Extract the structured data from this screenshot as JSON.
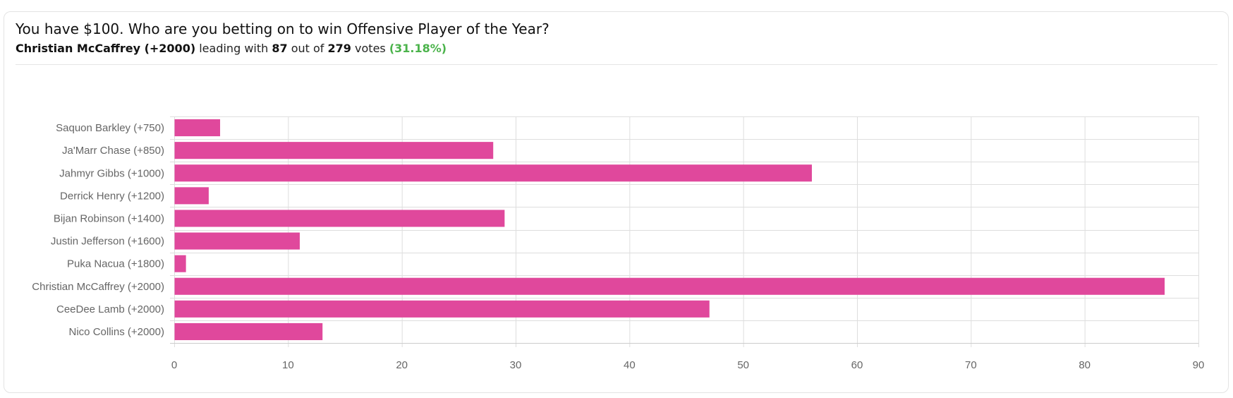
{
  "poll": {
    "question": "You have $100. Who are you betting on to win Offensive Player of the Year?",
    "leader_name": "Christian McCaffrey (+2000)",
    "leading_text": "leading with",
    "leader_votes": "87",
    "out_of_text": "out of",
    "total_votes": "279",
    "votes_text": "votes",
    "leader_pct": "(31.18%)"
  },
  "colors": {
    "bar": "#e0489c",
    "grid": "#dedede",
    "axis": "#cccccc",
    "leader_pct": "#4bb34b"
  },
  "chart_data": {
    "type": "bar",
    "orientation": "horizontal",
    "categories": [
      "Saquon Barkley (+750)",
      "Ja'Marr Chase (+850)",
      "Jahmyr Gibbs (+1000)",
      "Derrick Henry (+1200)",
      "Bijan Robinson (+1400)",
      "Justin Jefferson (+1600)",
      "Puka Nacua (+1800)",
      "Christian McCaffrey (+2000)",
      "CeeDee Lamb (+2000)",
      "Nico Collins (+2000)"
    ],
    "values": [
      4,
      28,
      56,
      3,
      29,
      11,
      1,
      87,
      47,
      13
    ],
    "xlim": [
      0,
      90
    ],
    "xticks": [
      0,
      10,
      20,
      30,
      40,
      50,
      60,
      70,
      80,
      90
    ],
    "grid": true,
    "legend": "none"
  }
}
